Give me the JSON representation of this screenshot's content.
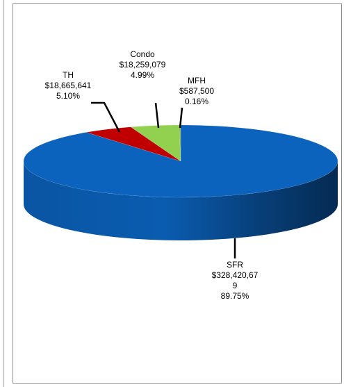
{
  "chart_data": {
    "type": "pie",
    "categories": [
      "SFR",
      "TH",
      "Condo",
      "MFH"
    ],
    "values": [
      89.75,
      5.1,
      4.99,
      0.16
    ],
    "value_labels": [
      "89.75%",
      "5.10%",
      "4.99%",
      "0.16%"
    ],
    "amounts": [
      328420679,
      18665641,
      18259079,
      587500
    ],
    "amount_labels": [
      "$328,420,679",
      "$18,665,641",
      "$18,259,079",
      "$587,500"
    ],
    "colors": [
      "#0b63bd",
      "#c00000",
      "#92d050",
      "#8db45a"
    ]
  }
}
